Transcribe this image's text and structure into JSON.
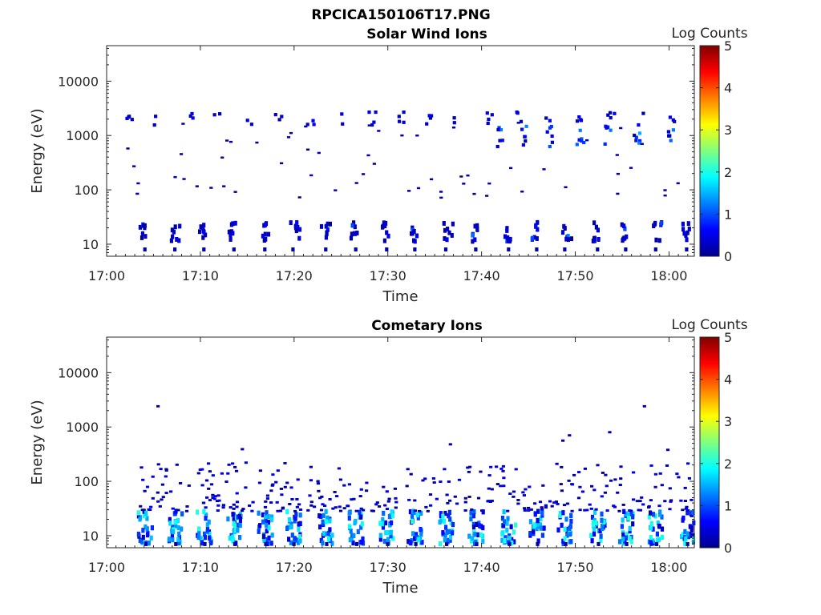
{
  "figure": {
    "title": "RPCICA150106T17.PNG"
  },
  "chart_data": [
    {
      "type": "heatmap",
      "title": "Solar Wind Ions",
      "xlabel": "Time",
      "ylabel": "Energy (eV)",
      "x_tick_labels": [
        "17:00",
        "17:10",
        "17:20",
        "17:30",
        "17:40",
        "17:50",
        "18:00"
      ],
      "x_ticks_min": [
        0,
        10,
        20,
        30,
        40,
        50,
        60
      ],
      "xlim_min": [
        0,
        62.7
      ],
      "y_scale": "log",
      "y_tick_labels": [
        "10",
        "100",
        "1000",
        "10000"
      ],
      "y_ticks": [
        10,
        100,
        1000,
        10000
      ],
      "ylim": [
        6,
        45000
      ],
      "colorbar": {
        "label": "Log Counts",
        "min": 0,
        "max": 5,
        "tick_labels": [
          "0",
          "1",
          "2",
          "3",
          "4",
          "5"
        ]
      },
      "grid": false,
      "description_bands": [
        {
          "energy_eV": 2000,
          "level": "0-0.5",
          "times_min": [
            2,
            5,
            8.5,
            11.5,
            14.8,
            18,
            21.5,
            24.5,
            28,
            31,
            34,
            37,
            40.5,
            43.5,
            46.8,
            50,
            53.5,
            56.8,
            60
          ]
        },
        {
          "energy_eV": 900,
          "level": "0-1.5",
          "times_min": [
            41.5,
            44,
            46.8,
            50,
            53,
            56,
            59.5
          ]
        },
        {
          "energy_eV": 17,
          "level": "0-1",
          "times_min": [
            3.7,
            6.9,
            10,
            13.2,
            16.5,
            19.5,
            23,
            26.2,
            29.5,
            32.5,
            35.8,
            39,
            42.5,
            45.5,
            48.5,
            52,
            55,
            58.2,
            61.5
          ]
        }
      ]
    },
    {
      "type": "heatmap",
      "title": "Cometary Ions",
      "xlabel": "Time",
      "ylabel": "Energy (eV)",
      "x_tick_labels": [
        "17:00",
        "17:10",
        "17:20",
        "17:30",
        "17:40",
        "17:50",
        "18:00"
      ],
      "x_ticks_min": [
        0,
        10,
        20,
        30,
        40,
        50,
        60
      ],
      "xlim_min": [
        0,
        62.7
      ],
      "y_scale": "log",
      "y_tick_labels": [
        "10",
        "100",
        "1000",
        "10000"
      ],
      "y_ticks": [
        10,
        100,
        1000,
        10000
      ],
      "ylim": [
        6,
        45000
      ],
      "colorbar": {
        "label": "Log Counts",
        "min": 0,
        "max": 5,
        "tick_labels": [
          "0",
          "1",
          "2",
          "3",
          "4",
          "5"
        ]
      },
      "grid": false,
      "description_bands": [
        {
          "energy_eV": 12,
          "level": "0-2",
          "times_min": [
            3.7,
            6.9,
            10,
            13.2,
            16.5,
            19.5,
            23,
            26.2,
            29.5,
            32.5,
            35.8,
            39,
            42.5,
            45.5,
            48.5,
            52,
            55,
            58.2,
            61.5
          ]
        },
        {
          "energy_eV": 60,
          "level": "0-0.5",
          "times_range_min": [
            3,
            62.5
          ]
        }
      ]
    }
  ]
}
